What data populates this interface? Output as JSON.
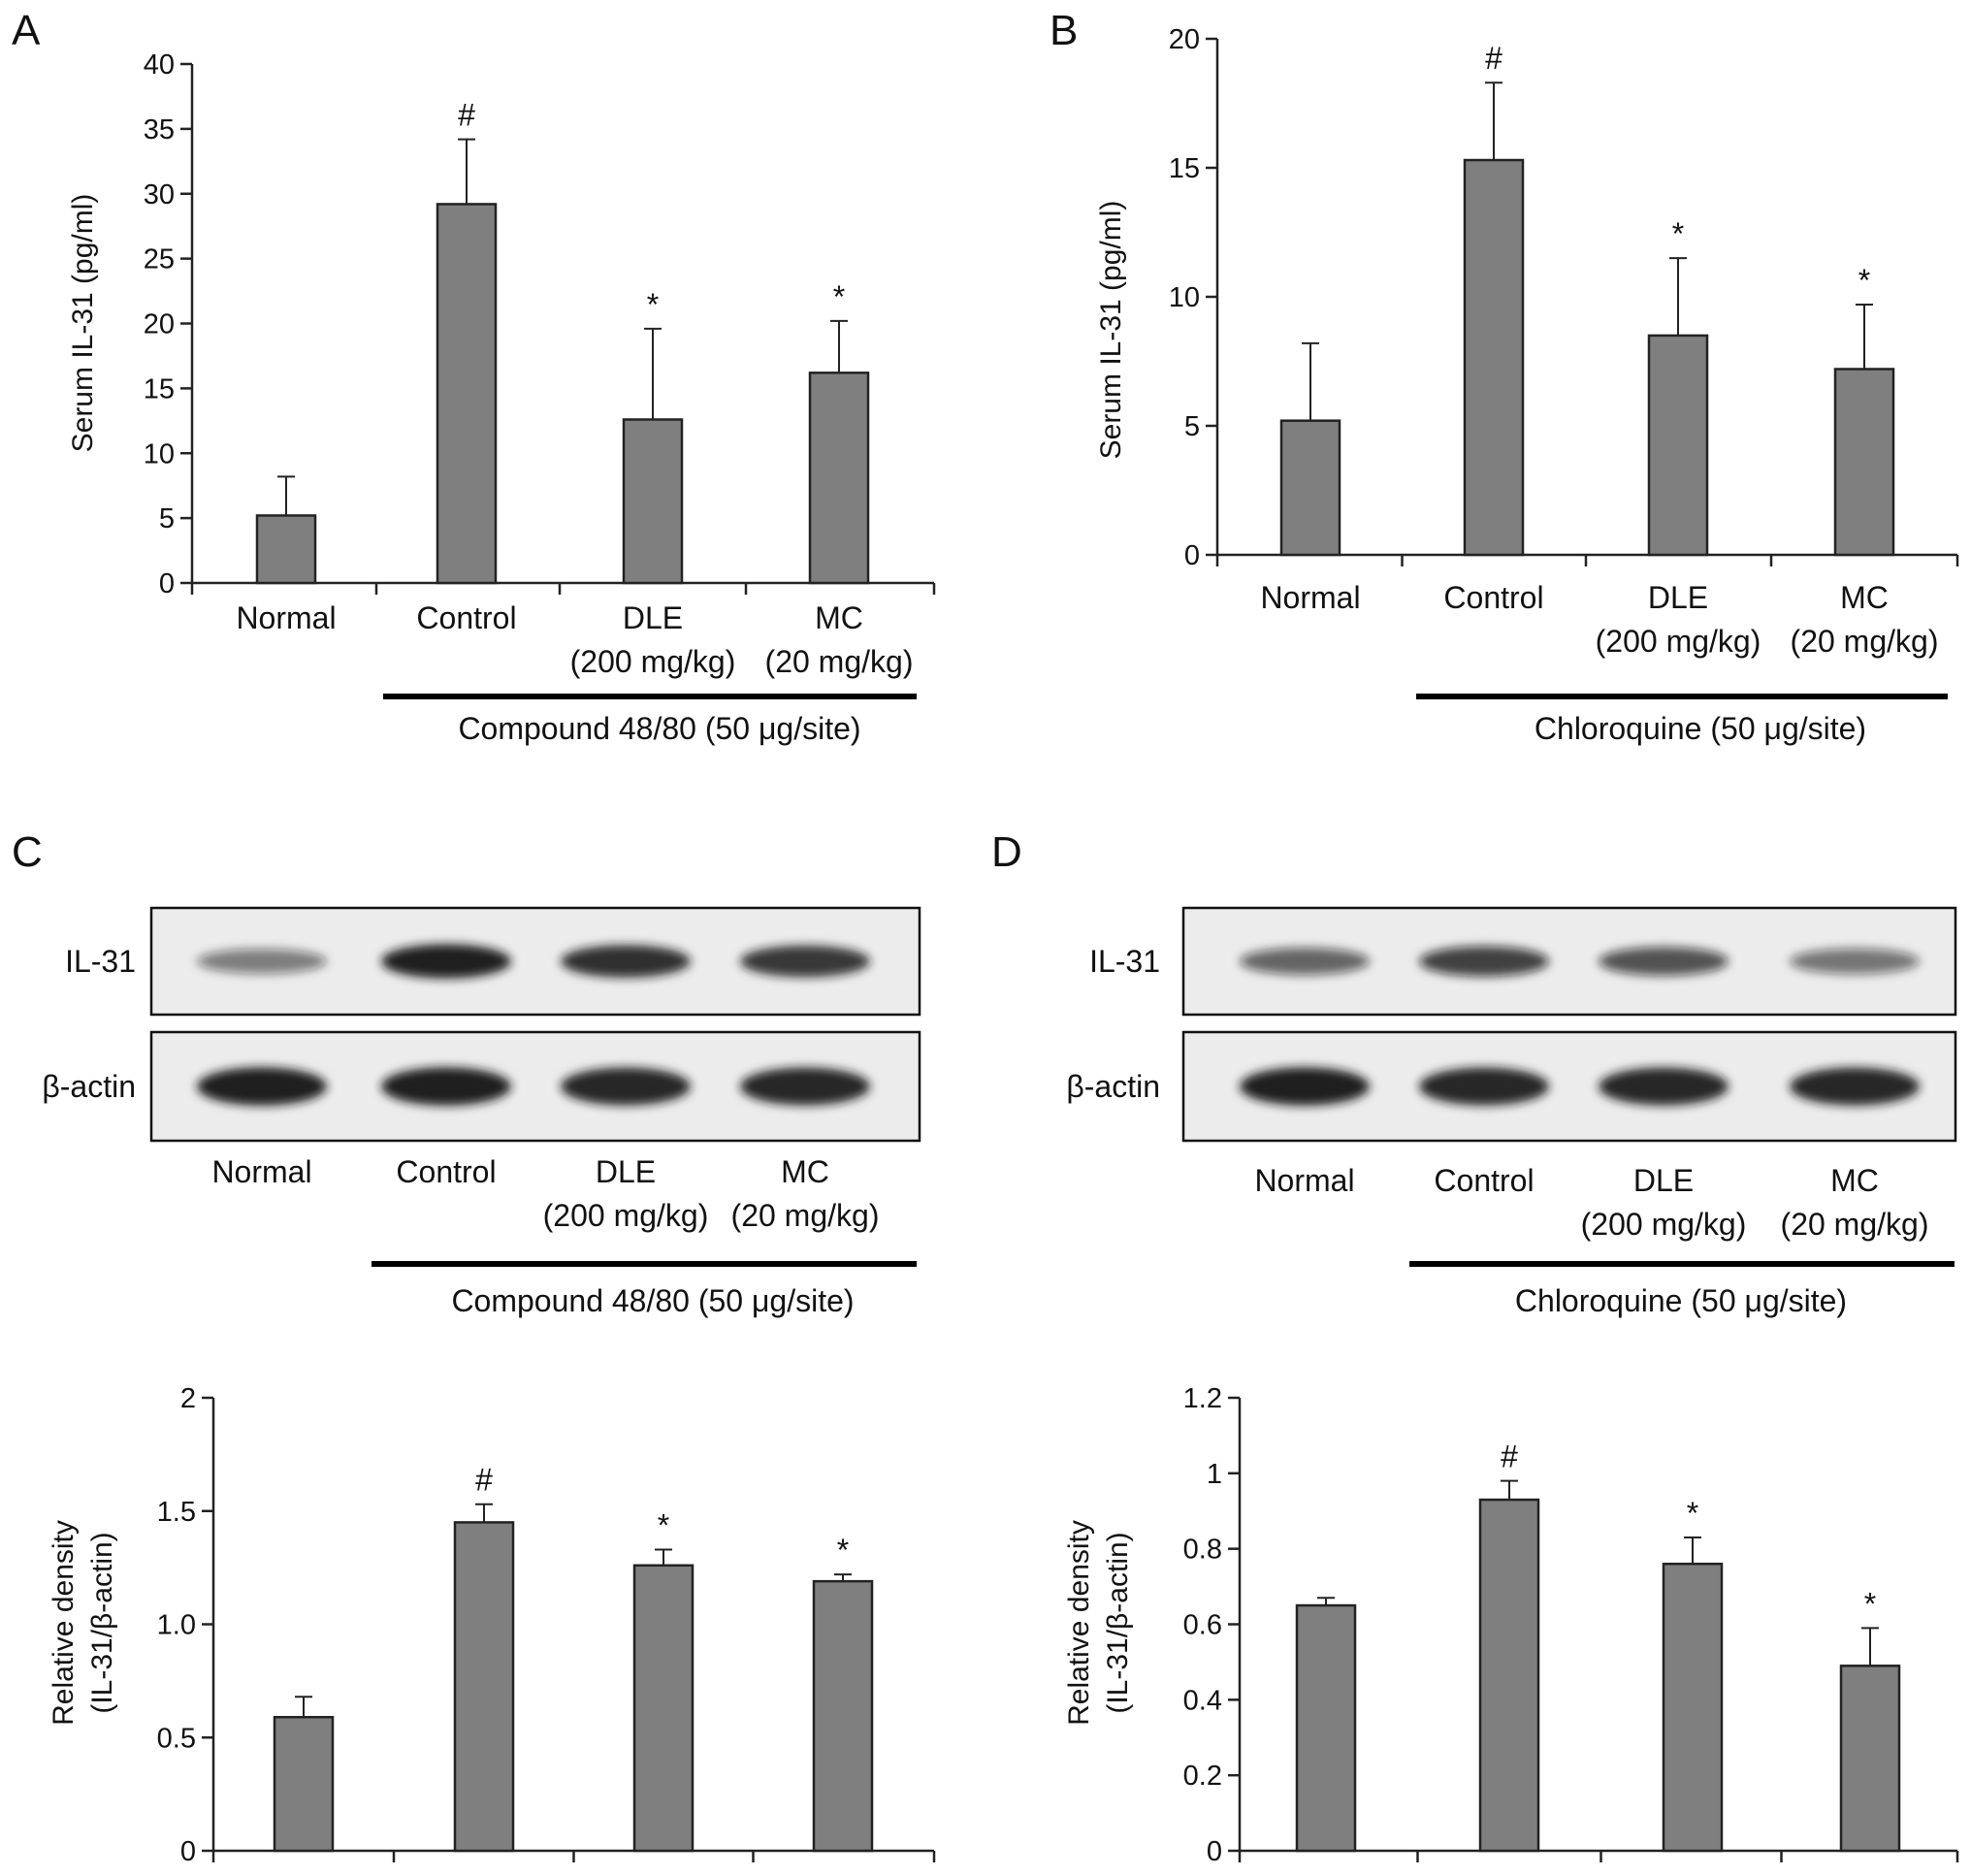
{
  "colors": {
    "bar_fill": "#7f7f7f",
    "bar_stroke": "#222222",
    "axis": "#222222",
    "blot_background": "#ececec",
    "band": "#151515"
  },
  "chart_data": [
    {
      "panel": "A",
      "type": "bar",
      "categories": [
        "Normal",
        "Control",
        "DLE",
        "MC"
      ],
      "category_sublabels": [
        "",
        "",
        "(200 mg/kg)",
        "(20 mg/kg)"
      ],
      "values": [
        5.2,
        29.2,
        12.6,
        16.2
      ],
      "errors": [
        3.0,
        5.0,
        7.0,
        4.0
      ],
      "significance": [
        "",
        "#",
        "*",
        "*"
      ],
      "ylabel": "Serum IL-31 (pg/ml)",
      "ylim": [
        0,
        40
      ],
      "yticks": [
        "0",
        "5",
        "10",
        "15",
        "20",
        "25",
        "30",
        "35",
        "40"
      ],
      "bracket": {
        "label": "Compound 48/80 (50 μg/site)",
        "from": 1,
        "to": 3
      }
    },
    {
      "panel": "B",
      "type": "bar",
      "categories": [
        "Normal",
        "Control",
        "DLE",
        "MC"
      ],
      "category_sublabels": [
        "",
        "",
        "(200 mg/kg)",
        "(20 mg/kg)"
      ],
      "values": [
        5.2,
        15.3,
        8.5,
        7.2
      ],
      "errors": [
        3.0,
        3.0,
        3.0,
        2.5
      ],
      "significance": [
        "",
        "#",
        "*",
        "*"
      ],
      "ylabel": "Serum IL-31 (pg/ml)",
      "ylim": [
        0,
        20
      ],
      "yticks": [
        "0",
        "5",
        "10",
        "15",
        "20"
      ],
      "bracket": {
        "label": "Chloroquine (50 μg/site)",
        "from": 1,
        "to": 3
      }
    },
    {
      "panel": "C",
      "type": "bar",
      "categories": [
        "Normal",
        "Control",
        "DLE",
        "MC"
      ],
      "category_sublabels": [
        "",
        "",
        "(200 mg/kg)",
        "(20 mg/kg)"
      ],
      "values": [
        0.59,
        1.45,
        1.26,
        1.19
      ],
      "errors": [
        0.09,
        0.08,
        0.07,
        0.03
      ],
      "significance": [
        "",
        "#",
        "*",
        "*"
      ],
      "ylabel": "Relative density",
      "ylabel2": "(IL-31/β-actin)",
      "ylim": [
        0,
        2
      ],
      "yticks": [
        "0",
        "0.5",
        "1.0",
        "1.5",
        "2"
      ],
      "bracket": {
        "label": "Compound 48/80 (50 μg/site)",
        "from": 1,
        "to": 3
      },
      "blot": {
        "rows": [
          "IL-31",
          "β-actin"
        ],
        "il31_intensity": [
          0.35,
          0.95,
          0.85,
          0.8
        ],
        "actin_intensity": [
          0.95,
          0.95,
          0.9,
          0.9
        ]
      }
    },
    {
      "panel": "D",
      "type": "bar",
      "categories": [
        "Normal",
        "Control",
        "DLE",
        "MC"
      ],
      "category_sublabels": [
        "",
        "",
        "(200 mg/kg)",
        "(20 mg/kg)"
      ],
      "values": [
        0.65,
        0.93,
        0.76,
        0.49
      ],
      "errors": [
        0.02,
        0.05,
        0.07,
        0.1
      ],
      "significance": [
        "",
        "#",
        "*",
        "*"
      ],
      "ylabel": "Relative density",
      "ylabel2": "(IL-31/β-actin)",
      "ylim": [
        0,
        1.2
      ],
      "yticks": [
        "0",
        "0.2",
        "0.4",
        "0.6",
        "0.8",
        "1",
        "1.2"
      ],
      "bracket": {
        "label": "Chloroquine (50 μg/site)",
        "from": 1,
        "to": 3
      },
      "blot": {
        "rows": [
          "IL-31",
          "β-actin"
        ],
        "il31_intensity": [
          0.5,
          0.7,
          0.6,
          0.4
        ],
        "actin_intensity": [
          0.95,
          0.9,
          0.9,
          0.9
        ]
      }
    }
  ]
}
